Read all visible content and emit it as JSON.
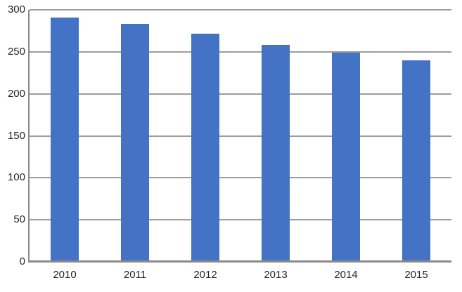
{
  "chart_data": {
    "type": "bar",
    "title": "",
    "xlabel": "",
    "ylabel": "",
    "categories": [
      "2010",
      "2011",
      "2012",
      "2013",
      "2014",
      "2015"
    ],
    "values": [
      291,
      283,
      272,
      258,
      249,
      240
    ],
    "ylim": [
      0,
      300
    ],
    "yticks": [
      0,
      50,
      100,
      150,
      200,
      250,
      300
    ],
    "grid": true,
    "legend": "none",
    "colors": {
      "bar": "#4472C4",
      "gridline": "#9d9d9d",
      "axis": "#8a8a8a",
      "label": "#262626",
      "background": "#ffffff"
    }
  }
}
